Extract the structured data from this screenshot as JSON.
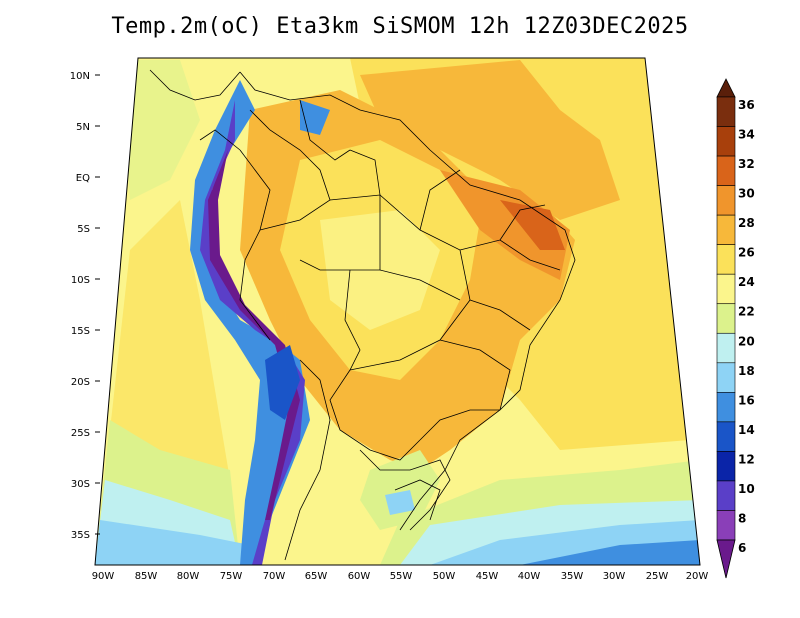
{
  "title": "Temp.2m(oC) Eta3km SiSMOM 12h 12Z03DEC2025",
  "map": {
    "lat_labels": [
      "10N",
      "5N",
      "EQ",
      "5S",
      "10S",
      "15S",
      "20S",
      "25S",
      "30S",
      "35S"
    ],
    "lon_labels": [
      "90W",
      "85W",
      "80W",
      "75W",
      "70W",
      "65W",
      "60W",
      "55W",
      "50W",
      "45W",
      "40W",
      "35W",
      "30W",
      "25W",
      "20W"
    ]
  },
  "colorbar": {
    "labels": [
      "36",
      "34",
      "32",
      "30",
      "28",
      "26",
      "24",
      "22",
      "20",
      "18",
      "16",
      "14",
      "12",
      "10",
      "8",
      "6"
    ],
    "colors": [
      "#5a1f0a",
      "#7a2e0e",
      "#a8400c",
      "#d9641a",
      "#f0952c",
      "#f7b83a",
      "#fbe15a",
      "#fbf58c",
      "#dcf28c",
      "#bff0f0",
      "#8ed3f5",
      "#3f8fe0",
      "#1a55c8",
      "#0a24a8",
      "#5a3fc8",
      "#8a3fb8",
      "#6a1a8c"
    ]
  }
}
